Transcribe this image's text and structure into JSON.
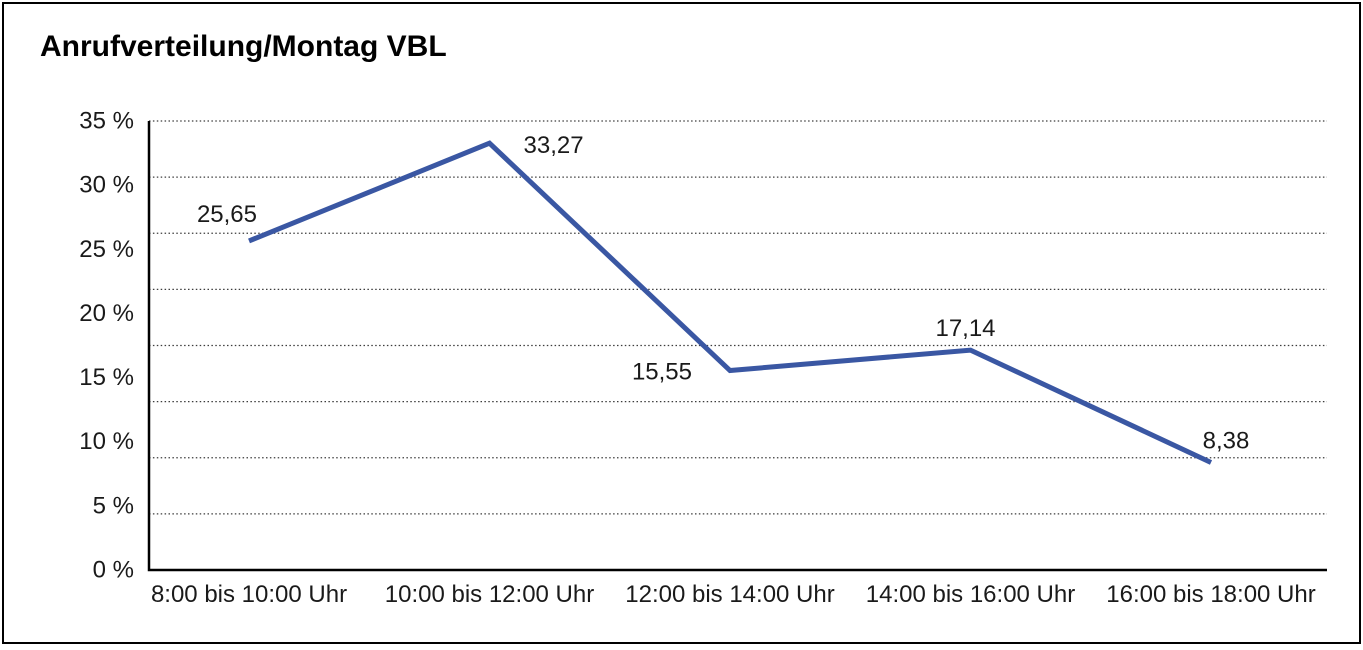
{
  "window": {
    "title": "Anrufverteilung/Montag VBL"
  },
  "chart_data": {
    "type": "line",
    "title": "Anrufverteilung/Montag VBL",
    "categories": [
      "8:00 bis 10:00 Uhr",
      "10:00 bis 12:00 Uhr",
      "12:00 bis 14:00 Uhr",
      "14:00 bis 16:00 Uhr",
      "16:00 bis 18:00 Uhr"
    ],
    "series": [
      {
        "name": "Anrufverteilung",
        "values": [
          25.65,
          33.27,
          15.55,
          17.14,
          8.38
        ]
      }
    ],
    "value_labels": [
      "25,65",
      "33,27",
      "15,55",
      "17,14",
      "8,38"
    ],
    "xlabel": "",
    "ylabel": "",
    "ylim": [
      0,
      35
    ],
    "y_tick_step": 5,
    "y_tick_labels": [
      "0 %",
      "5 %",
      "10 %",
      "15 %",
      "20 %",
      "25 %",
      "30 %",
      "35 %"
    ],
    "grid": "horizontal dotted, 8 equal divisions",
    "legend_position": "none",
    "line_color": "#3A57A3",
    "grid_color": "#3C3C3C",
    "axis_color": "#000000",
    "text_color": "#1A1A1A"
  }
}
